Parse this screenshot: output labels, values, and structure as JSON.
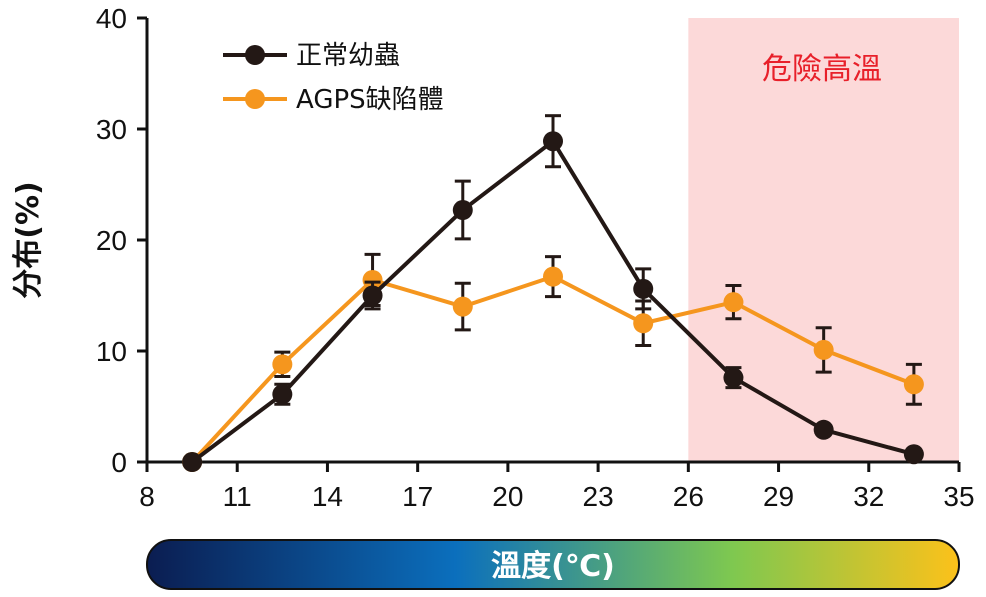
{
  "chart_data": {
    "type": "line",
    "ylabel": "分布(%)",
    "xlabel": "溫度(℃)",
    "xlim": [
      8,
      35
    ],
    "ylim": [
      0,
      40
    ],
    "xticks": [
      8,
      11,
      14,
      17,
      20,
      23,
      26,
      29,
      32,
      35
    ],
    "yticks": [
      0,
      10,
      20,
      30,
      40
    ],
    "legend_position": "top-left",
    "grid": false,
    "x": [
      9.5,
      12.5,
      15.5,
      18.5,
      21.5,
      24.5,
      27.5,
      30.5,
      33.5
    ],
    "series": [
      {
        "name": "正常幼蟲",
        "color": "#231815",
        "values": [
          0,
          6.1,
          15,
          22.7,
          28.9,
          15.6,
          7.6,
          2.9,
          0.7
        ],
        "errors": [
          0,
          0.9,
          1.2,
          2.6,
          2.3,
          1.8,
          0.9,
          0,
          0
        ]
      },
      {
        "name": "AGPS缺陷體",
        "color": "#f5961e",
        "values": [
          0,
          8.8,
          16.4,
          14,
          16.7,
          12.5,
          14.4,
          10.1,
          7
        ],
        "errors": [
          0,
          1.1,
          2.3,
          2.1,
          1.8,
          2,
          1.5,
          2,
          1.8
        ]
      }
    ],
    "annotations": [
      {
        "text": "危險高溫",
        "x_start": 26,
        "x_end": 35,
        "color": "#fcd9d9",
        "text_color": "#e8202a"
      }
    ],
    "colorbar": {
      "label": "溫度(℃)",
      "colors": [
        "#0b1d51",
        "#0b6fbd",
        "#7ec850",
        "#fcc11a"
      ]
    }
  }
}
